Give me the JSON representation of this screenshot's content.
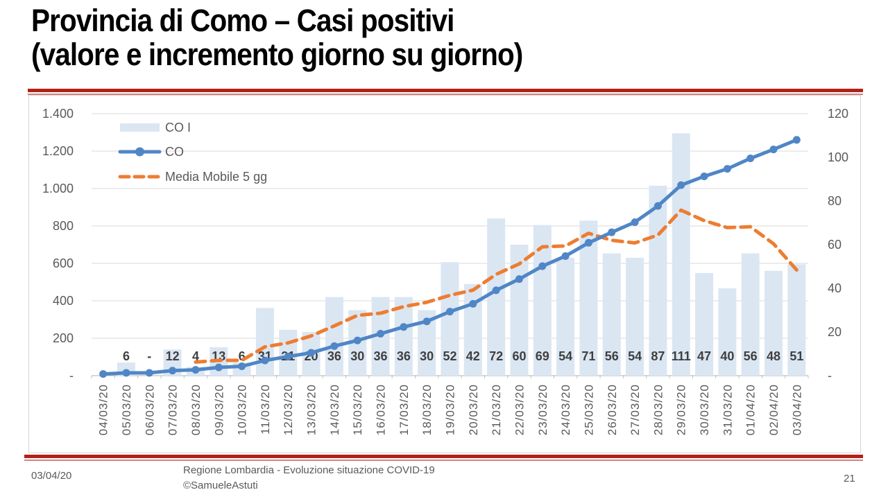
{
  "slide": {
    "title_line1": "Provincia di Como – Casi positivi",
    "title_line2": "(valore e incremento giorno su giorno)",
    "footer": {
      "date": "03/04/20",
      "center_line1": "Regione Lombardia - Evoluzione situazione COVID-19",
      "center_line2": "©SamueleAstuti",
      "page_number": "21"
    }
  },
  "chart_data": {
    "type": "combo",
    "grid": true,
    "legend_position": "top-left",
    "categories": [
      "04/03/20",
      "05/03/20",
      "06/03/20",
      "07/03/20",
      "08/03/20",
      "09/03/20",
      "10/03/20",
      "11/03/20",
      "12/03/20",
      "13/03/20",
      "14/03/20",
      "15/03/20",
      "16/03/20",
      "17/03/20",
      "18/03/20",
      "19/03/20",
      "20/03/20",
      "21/03/20",
      "22/03/20",
      "23/03/20",
      "24/03/20",
      "25/03/20",
      "26/03/20",
      "27/03/20",
      "28/03/20",
      "29/03/20",
      "30/03/20",
      "31/03/20",
      "01/04/20",
      "02/04/20",
      "03/04/20"
    ],
    "left_axis": {
      "min": 0,
      "max": 1400,
      "step": 200,
      "ticks": [
        "1.400",
        "1.200",
        "1.000",
        "800",
        "600",
        "400",
        "200",
        "-"
      ]
    },
    "right_axis": {
      "min": 0,
      "max": 120,
      "step": 20,
      "ticks": [
        "120",
        "100",
        "80",
        "60",
        "40",
        "20",
        "-"
      ]
    },
    "series": [
      {
        "name": "CO I",
        "type": "bar",
        "axis": "right",
        "color": "#dbe6f3",
        "values": [
          null,
          6,
          0,
          12,
          4,
          13,
          6,
          31,
          21,
          20,
          36,
          30,
          36,
          36,
          30,
          52,
          42,
          72,
          60,
          69,
          54,
          71,
          56,
          54,
          87,
          111,
          47,
          40,
          56,
          48,
          51
        ],
        "labels": [
          "",
          "6",
          "-",
          "12",
          "4",
          "13",
          "6",
          "31",
          "21",
          "20",
          "36",
          "30",
          "36",
          "36",
          "30",
          "52",
          "42",
          "72",
          "60",
          "69",
          "54",
          "71",
          "56",
          "54",
          "87",
          "111",
          "47",
          "40",
          "56",
          "48",
          "51"
        ]
      },
      {
        "name": "CO",
        "type": "line",
        "axis": "left",
        "color": "#4f86c6",
        "values": [
          9,
          15,
          15,
          27,
          31,
          44,
          50,
          81,
          102,
          122,
          158,
          188,
          224,
          260,
          290,
          342,
          384,
          456,
          516,
          585,
          639,
          710,
          766,
          820,
          907,
          1018,
          1065,
          1105,
          1161,
          1209,
          1260
        ]
      },
      {
        "name": "Media Mobile 5 gg",
        "type": "line-dashed",
        "axis": "right",
        "color": "#ed7d31",
        "start_index": 4,
        "values": [
          6.2,
          7,
          7,
          13.2,
          15,
          18.2,
          22.8,
          27.6,
          28.6,
          31.6,
          33.6,
          36.8,
          39.2,
          46.4,
          51.2,
          59,
          59.4,
          65.2,
          62,
          60.8,
          64.4,
          75.8,
          71,
          67.8,
          68.2,
          60.4,
          48.4
        ]
      }
    ],
    "colors": {
      "gridline": "#d9d9d9",
      "axis_line": "#bfbfbf"
    }
  }
}
